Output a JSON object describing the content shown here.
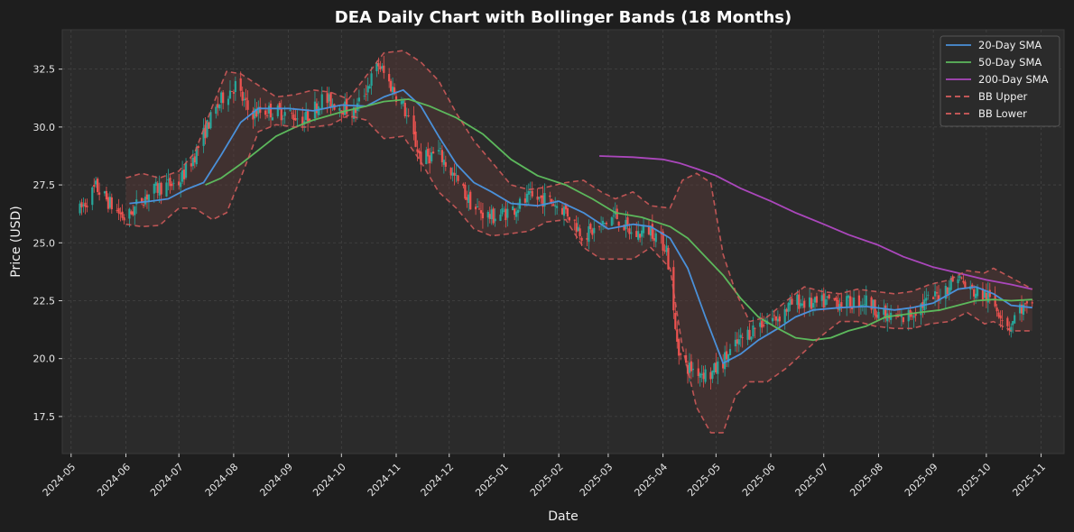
{
  "chart_data": {
    "type": "line",
    "title": "DEA Daily Chart with Bollinger Bands (18 Months)",
    "xlabel": "Date",
    "ylabel": "Price (USD)",
    "ylim": [
      15.9,
      34.2
    ],
    "xlim": [
      "2024-04-26",
      "2025-11-14"
    ],
    "grid": true,
    "legend_position": "top-right",
    "y_ticks": [
      17.5,
      20.0,
      22.5,
      25.0,
      27.5,
      30.0,
      32.5
    ],
    "y_tick_labels": [
      "17.5",
      "20.0",
      "22.5",
      "25.0",
      "27.5",
      "30.0",
      "32.5"
    ],
    "x_ticks": [
      "2024-05-01",
      "2024-06-01",
      "2024-07-01",
      "2024-08-01",
      "2024-09-01",
      "2024-10-01",
      "2024-11-01",
      "2024-12-01",
      "2025-01-01",
      "2025-02-01",
      "2025-03-01",
      "2025-04-01",
      "2025-05-01",
      "2025-06-01",
      "2025-07-01",
      "2025-08-01",
      "2025-09-01",
      "2025-10-01",
      "2025-11-01"
    ],
    "x_tick_labels": [
      "2024-05",
      "2024-06",
      "2024-07",
      "2024-08",
      "2024-09",
      "2024-10",
      "2024-11",
      "2024-12",
      "2025-01",
      "2025-02",
      "2025-03",
      "2025-04",
      "2025-05",
      "2025-06",
      "2025-07",
      "2025-08",
      "2025-09",
      "2025-10",
      "2025-11"
    ],
    "colors": {
      "up": "#26a69a",
      "down": "#ef5350",
      "sma20": "#4a90d9",
      "sma50": "#5cb85c",
      "sma200": "#ab47bc",
      "bb": "#d65c5c",
      "bb_fill": "#5a3a38"
    },
    "price_path": [
      [
        "2024-05-06",
        26.4
      ],
      [
        "2024-05-15",
        27.4
      ],
      [
        "2024-05-24",
        26.6
      ],
      [
        "2024-06-01",
        26.0
      ],
      [
        "2024-06-10",
        26.9
      ],
      [
        "2024-06-20",
        27.4
      ],
      [
        "2024-07-01",
        27.6
      ],
      [
        "2024-07-10",
        28.8
      ],
      [
        "2024-07-18",
        30.2
      ],
      [
        "2024-07-26",
        31.3
      ],
      [
        "2024-08-02",
        31.8
      ],
      [
        "2024-08-10",
        30.6
      ],
      [
        "2024-08-20",
        30.7
      ],
      [
        "2024-09-01",
        30.6
      ],
      [
        "2024-09-10",
        30.3
      ],
      [
        "2024-09-20",
        31.2
      ],
      [
        "2024-10-01",
        30.9
      ],
      [
        "2024-10-08",
        30.6
      ],
      [
        "2024-10-16",
        31.8
      ],
      [
        "2024-10-22",
        32.7
      ],
      [
        "2024-10-28",
        31.9
      ],
      [
        "2024-11-05",
        30.9
      ],
      [
        "2024-11-15",
        28.6
      ],
      [
        "2024-11-25",
        28.9
      ],
      [
        "2024-12-05",
        27.7
      ],
      [
        "2024-12-15",
        26.5
      ],
      [
        "2024-12-25",
        26.1
      ],
      [
        "2025-01-05",
        26.4
      ],
      [
        "2025-01-15",
        26.9
      ],
      [
        "2025-01-25",
        26.9
      ],
      [
        "2025-02-05",
        26.4
      ],
      [
        "2025-02-15",
        25.3
      ],
      [
        "2025-02-25",
        25.7
      ],
      [
        "2025-03-05",
        26.2
      ],
      [
        "2025-03-15",
        25.3
      ],
      [
        "2025-03-25",
        25.6
      ],
      [
        "2025-04-03",
        24.8
      ],
      [
        "2025-04-08",
        21.2
      ],
      [
        "2025-04-12",
        19.7
      ],
      [
        "2025-04-20",
        19.5
      ],
      [
        "2025-04-28",
        19.3
      ],
      [
        "2025-05-05",
        19.9
      ],
      [
        "2025-05-15",
        20.8
      ],
      [
        "2025-05-25",
        21.5
      ],
      [
        "2025-06-05",
        21.8
      ],
      [
        "2025-06-15",
        22.5
      ],
      [
        "2025-06-25",
        22.3
      ],
      [
        "2025-07-05",
        22.5
      ],
      [
        "2025-07-15",
        22.4
      ],
      [
        "2025-07-25",
        22.5
      ],
      [
        "2025-08-05",
        21.8
      ],
      [
        "2025-08-15",
        21.7
      ],
      [
        "2025-08-25",
        22.3
      ],
      [
        "2025-09-05",
        22.8
      ],
      [
        "2025-09-15",
        23.6
      ],
      [
        "2025-09-20",
        23.0
      ],
      [
        "2025-10-01",
        22.7
      ],
      [
        "2025-10-08",
        22.1
      ],
      [
        "2025-10-14",
        21.4
      ],
      [
        "2025-10-20",
        22.2
      ],
      [
        "2025-10-27",
        22.1
      ]
    ],
    "series": [
      {
        "name": "20-Day SMA",
        "style": "solid",
        "points": [
          [
            "2024-06-03",
            26.7
          ],
          [
            "2024-06-15",
            26.8
          ],
          [
            "2024-06-25",
            26.9
          ],
          [
            "2024-07-05",
            27.3
          ],
          [
            "2024-07-15",
            27.6
          ],
          [
            "2024-07-25",
            28.8
          ],
          [
            "2024-08-05",
            30.2
          ],
          [
            "2024-08-15",
            30.8
          ],
          [
            "2024-09-01",
            30.8
          ],
          [
            "2024-09-15",
            30.7
          ],
          [
            "2024-10-01",
            30.95
          ],
          [
            "2024-10-15",
            30.9
          ],
          [
            "2024-10-25",
            31.3
          ],
          [
            "2024-11-05",
            31.6
          ],
          [
            "2024-11-15",
            30.9
          ],
          [
            "2024-11-25",
            29.6
          ],
          [
            "2024-12-05",
            28.4
          ],
          [
            "2024-12-15",
            27.6
          ],
          [
            "2024-12-25",
            27.2
          ],
          [
            "2025-01-05",
            26.7
          ],
          [
            "2025-01-20",
            26.6
          ],
          [
            "2025-02-01",
            26.8
          ],
          [
            "2025-02-15",
            26.3
          ],
          [
            "2025-03-01",
            25.6
          ],
          [
            "2025-03-15",
            25.8
          ],
          [
            "2025-03-25",
            25.7
          ],
          [
            "2025-04-05",
            25.2
          ],
          [
            "2025-04-15",
            23.9
          ],
          [
            "2025-04-25",
            21.8
          ],
          [
            "2025-05-05",
            19.8
          ],
          [
            "2025-05-15",
            20.2
          ],
          [
            "2025-05-25",
            20.8
          ],
          [
            "2025-06-05",
            21.3
          ],
          [
            "2025-06-15",
            21.8
          ],
          [
            "2025-06-25",
            22.1
          ],
          [
            "2025-07-10",
            22.2
          ],
          [
            "2025-07-25",
            22.25
          ],
          [
            "2025-08-10",
            22.1
          ],
          [
            "2025-08-20",
            22.2
          ],
          [
            "2025-09-01",
            22.4
          ],
          [
            "2025-09-15",
            23.0
          ],
          [
            "2025-09-25",
            23.1
          ],
          [
            "2025-10-05",
            22.8
          ],
          [
            "2025-10-15",
            22.3
          ],
          [
            "2025-10-27",
            22.2
          ]
        ]
      },
      {
        "name": "50-Day SMA",
        "style": "solid",
        "points": [
          [
            "2024-07-16",
            27.5
          ],
          [
            "2024-07-25",
            27.8
          ],
          [
            "2024-08-05",
            28.4
          ],
          [
            "2024-08-15",
            29.0
          ],
          [
            "2024-08-25",
            29.6
          ],
          [
            "2024-09-05",
            30.0
          ],
          [
            "2024-09-15",
            30.3
          ],
          [
            "2024-10-01",
            30.65
          ],
          [
            "2024-10-15",
            30.9
          ],
          [
            "2024-10-25",
            31.1
          ],
          [
            "2024-11-08",
            31.2
          ],
          [
            "2024-11-20",
            30.9
          ],
          [
            "2024-12-05",
            30.4
          ],
          [
            "2024-12-20",
            29.7
          ],
          [
            "2025-01-05",
            28.6
          ],
          [
            "2025-01-20",
            27.9
          ],
          [
            "2025-02-05",
            27.5
          ],
          [
            "2025-02-20",
            26.9
          ],
          [
            "2025-03-05",
            26.3
          ],
          [
            "2025-03-20",
            26.1
          ],
          [
            "2025-04-05",
            25.7
          ],
          [
            "2025-04-15",
            25.2
          ],
          [
            "2025-04-25",
            24.4
          ],
          [
            "2025-05-05",
            23.6
          ],
          [
            "2025-05-15",
            22.6
          ],
          [
            "2025-05-25",
            21.8
          ],
          [
            "2025-06-05",
            21.3
          ],
          [
            "2025-06-15",
            20.9
          ],
          [
            "2025-06-25",
            20.8
          ],
          [
            "2025-07-05",
            20.9
          ],
          [
            "2025-07-15",
            21.2
          ],
          [
            "2025-07-25",
            21.4
          ],
          [
            "2025-08-05",
            21.8
          ],
          [
            "2025-08-15",
            21.9
          ],
          [
            "2025-08-25",
            22.0
          ],
          [
            "2025-09-05",
            22.1
          ],
          [
            "2025-09-15",
            22.3
          ],
          [
            "2025-09-25",
            22.5
          ],
          [
            "2025-10-05",
            22.55
          ],
          [
            "2025-10-15",
            22.5
          ],
          [
            "2025-10-27",
            22.55
          ]
        ]
      },
      {
        "name": "200-Day SMA",
        "style": "solid",
        "points": [
          [
            "2025-02-24",
            28.75
          ],
          [
            "2025-03-15",
            28.7
          ],
          [
            "2025-04-01",
            28.6
          ],
          [
            "2025-04-10",
            28.45
          ],
          [
            "2025-04-20",
            28.2
          ],
          [
            "2025-05-01",
            27.9
          ],
          [
            "2025-05-15",
            27.35
          ],
          [
            "2025-06-01",
            26.8
          ],
          [
            "2025-06-15",
            26.3
          ],
          [
            "2025-07-01",
            25.8
          ],
          [
            "2025-07-15",
            25.35
          ],
          [
            "2025-08-01",
            24.9
          ],
          [
            "2025-08-15",
            24.4
          ],
          [
            "2025-09-01",
            23.95
          ],
          [
            "2025-09-15",
            23.7
          ],
          [
            "2025-10-01",
            23.4
          ],
          [
            "2025-10-15",
            23.2
          ],
          [
            "2025-10-27",
            23.0
          ]
        ]
      },
      {
        "name": "BB Upper",
        "style": "dashed",
        "points": [
          [
            "2024-06-01",
            27.8
          ],
          [
            "2024-06-10",
            28.0
          ],
          [
            "2024-06-20",
            27.8
          ],
          [
            "2024-07-01",
            28.1
          ],
          [
            "2024-07-10",
            28.9
          ],
          [
            "2024-07-20",
            30.9
          ],
          [
            "2024-07-28",
            32.4
          ],
          [
            "2024-08-05",
            32.3
          ],
          [
            "2024-08-15",
            31.8
          ],
          [
            "2024-08-25",
            31.3
          ],
          [
            "2024-09-05",
            31.4
          ],
          [
            "2024-09-15",
            31.6
          ],
          [
            "2024-09-25",
            31.5
          ],
          [
            "2024-10-05",
            31.2
          ],
          [
            "2024-10-15",
            32.2
          ],
          [
            "2024-10-25",
            33.2
          ],
          [
            "2024-11-05",
            33.3
          ],
          [
            "2024-11-15",
            32.8
          ],
          [
            "2024-11-25",
            32.0
          ],
          [
            "2024-12-05",
            30.6
          ],
          [
            "2024-12-15",
            29.4
          ],
          [
            "2024-12-25",
            28.5
          ],
          [
            "2025-01-05",
            27.5
          ],
          [
            "2025-01-15",
            27.3
          ],
          [
            "2025-01-25",
            27.4
          ],
          [
            "2025-02-05",
            27.6
          ],
          [
            "2025-02-15",
            27.7
          ],
          [
            "2025-02-25",
            27.2
          ],
          [
            "2025-03-05",
            26.9
          ],
          [
            "2025-03-15",
            27.2
          ],
          [
            "2025-03-25",
            26.6
          ],
          [
            "2025-04-05",
            26.5
          ],
          [
            "2025-04-12",
            27.7
          ],
          [
            "2025-04-20",
            28.0
          ],
          [
            "2025-04-28",
            27.6
          ],
          [
            "2025-05-05",
            24.5
          ],
          [
            "2025-05-12",
            22.9
          ],
          [
            "2025-05-20",
            21.6
          ],
          [
            "2025-05-30",
            21.8
          ],
          [
            "2025-06-10",
            22.5
          ],
          [
            "2025-06-20",
            23.1
          ],
          [
            "2025-06-30",
            22.9
          ],
          [
            "2025-07-10",
            22.8
          ],
          [
            "2025-07-20",
            23.0
          ],
          [
            "2025-07-30",
            22.9
          ],
          [
            "2025-08-10",
            22.8
          ],
          [
            "2025-08-20",
            22.9
          ],
          [
            "2025-08-30",
            23.2
          ],
          [
            "2025-09-10",
            23.4
          ],
          [
            "2025-09-20",
            23.8
          ],
          [
            "2025-09-30",
            23.7
          ],
          [
            "2025-10-05",
            23.9
          ],
          [
            "2025-10-15",
            23.5
          ],
          [
            "2025-10-27",
            23.0
          ]
        ]
      },
      {
        "name": "BB Lower",
        "style": "dashed",
        "points": [
          [
            "2024-06-01",
            25.8
          ],
          [
            "2024-06-10",
            25.7
          ],
          [
            "2024-06-20",
            25.75
          ],
          [
            "2024-07-01",
            26.5
          ],
          [
            "2024-07-10",
            26.5
          ],
          [
            "2024-07-20",
            26.0
          ],
          [
            "2024-07-28",
            26.3
          ],
          [
            "2024-08-05",
            27.8
          ],
          [
            "2024-08-15",
            29.8
          ],
          [
            "2024-08-25",
            30.1
          ],
          [
            "2024-09-05",
            30.0
          ],
          [
            "2024-09-15",
            30.0
          ],
          [
            "2024-09-25",
            30.1
          ],
          [
            "2024-10-05",
            30.5
          ],
          [
            "2024-10-15",
            30.3
          ],
          [
            "2024-10-25",
            29.5
          ],
          [
            "2024-11-05",
            29.6
          ],
          [
            "2024-11-15",
            28.5
          ],
          [
            "2024-11-25",
            27.2
          ],
          [
            "2024-12-05",
            26.5
          ],
          [
            "2024-12-15",
            25.6
          ],
          [
            "2024-12-25",
            25.3
          ],
          [
            "2025-01-05",
            25.4
          ],
          [
            "2025-01-15",
            25.5
          ],
          [
            "2025-01-25",
            25.9
          ],
          [
            "2025-02-05",
            26.0
          ],
          [
            "2025-02-15",
            24.8
          ],
          [
            "2025-02-25",
            24.3
          ],
          [
            "2025-03-05",
            24.3
          ],
          [
            "2025-03-15",
            24.3
          ],
          [
            "2025-03-25",
            24.8
          ],
          [
            "2025-04-05",
            23.9
          ],
          [
            "2025-04-12",
            20.5
          ],
          [
            "2025-04-20",
            17.9
          ],
          [
            "2025-04-28",
            16.8
          ],
          [
            "2025-05-05",
            16.8
          ],
          [
            "2025-05-12",
            18.4
          ],
          [
            "2025-05-20",
            19.0
          ],
          [
            "2025-05-30",
            19.0
          ],
          [
            "2025-06-10",
            19.6
          ],
          [
            "2025-06-20",
            20.3
          ],
          [
            "2025-06-30",
            21.0
          ],
          [
            "2025-07-10",
            21.6
          ],
          [
            "2025-07-20",
            21.6
          ],
          [
            "2025-07-30",
            21.4
          ],
          [
            "2025-08-10",
            21.3
          ],
          [
            "2025-08-20",
            21.3
          ],
          [
            "2025-08-30",
            21.5
          ],
          [
            "2025-09-10",
            21.6
          ],
          [
            "2025-09-20",
            22.0
          ],
          [
            "2025-09-30",
            21.5
          ],
          [
            "2025-10-05",
            21.6
          ],
          [
            "2025-10-15",
            21.2
          ],
          [
            "2025-10-27",
            21.2
          ]
        ]
      }
    ]
  }
}
